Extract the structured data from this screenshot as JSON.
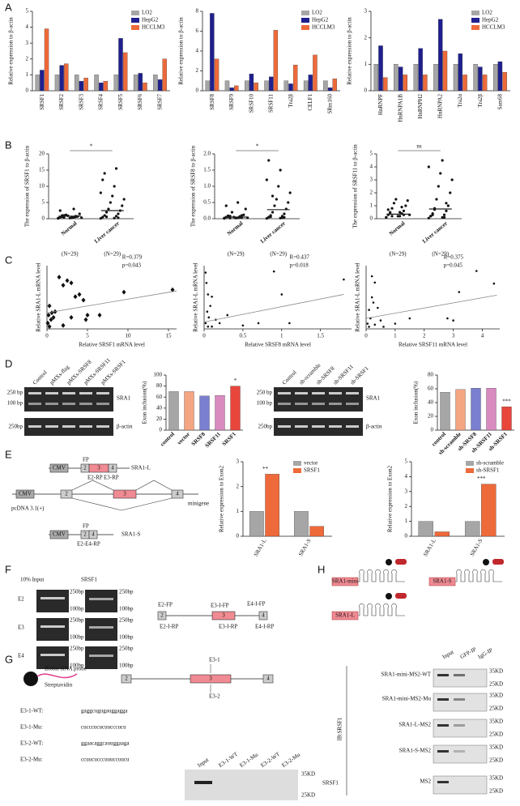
{
  "panel_labels": [
    "A",
    "B",
    "C",
    "D",
    "E",
    "F",
    "G",
    "H"
  ],
  "chart_data": [
    {
      "type": "bar",
      "ylabel": "Relative expression to β-actin",
      "categories": [
        "SRSF1",
        "SRSF2",
        "SRSF3",
        "SRSF4",
        "SRSF5",
        "SRSF6",
        "SRSF7"
      ],
      "series": [
        {
          "name": "LO2",
          "color": "#a6a6a6",
          "values": [
            1,
            1,
            1,
            1,
            1,
            1,
            1
          ]
        },
        {
          "name": "HepG2",
          "color": "#1f1f8f",
          "values": [
            1.3,
            1.6,
            0.6,
            0.5,
            3.3,
            1.1,
            0.7
          ]
        },
        {
          "name": "HCCLM3",
          "color": "#ee6a3a",
          "values": [
            3.9,
            1.7,
            0.8,
            0.6,
            2.4,
            0.5,
            2.0
          ]
        }
      ],
      "ylim": [
        0,
        5
      ],
      "yticks": [
        0,
        1,
        2,
        3,
        4,
        5
      ],
      "legend": "top-right"
    },
    {
      "type": "bar",
      "ylabel": "Relative expression to β-actin",
      "categories": [
        "SRSF8",
        "SRSF9",
        "SRSF10",
        "SRSF11",
        "Tra2β",
        "CELF1",
        "SRm160"
      ],
      "series": [
        {
          "name": "LO2",
          "color": "#a6a6a6",
          "values": [
            1,
            1,
            1,
            1,
            1,
            1,
            1
          ]
        },
        {
          "name": "HepG2",
          "color": "#1f1f8f",
          "values": [
            7.8,
            0.3,
            1.7,
            1.4,
            0.7,
            1.6,
            0.3
          ]
        },
        {
          "name": "HCCLM3",
          "color": "#ee6a3a",
          "values": [
            3.2,
            0.5,
            0.8,
            6.1,
            2.6,
            3.6,
            1.2
          ]
        }
      ],
      "ylim": [
        0,
        8
      ],
      "yticks": [
        0,
        2,
        4,
        6,
        8
      ],
      "legend": "top-right"
    },
    {
      "type": "bar",
      "ylabel": "Relative expression to β-actin",
      "categories": [
        "HnRNPF",
        "HnRNPA1B",
        "HnRNPH2",
        "HnRNPA2",
        "Tra2α",
        "Tra2β",
        "Sam68"
      ],
      "series": [
        {
          "name": "LO2",
          "color": "#a6a6a6",
          "values": [
            1,
            1,
            1,
            1,
            1,
            1,
            1
          ]
        },
        {
          "name": "HepG2",
          "color": "#1f1f8f",
          "values": [
            1.7,
            0.9,
            1.6,
            2.7,
            1.4,
            0.9,
            1.1
          ]
        },
        {
          "name": "HCCLM3",
          "color": "#ee6a3a",
          "values": [
            0.5,
            0.6,
            0.6,
            1.5,
            0.6,
            0.6,
            0.7
          ]
        }
      ],
      "ylim": [
        0,
        3
      ],
      "yticks": [
        0,
        1,
        2,
        3
      ],
      "legend": "top-right"
    },
    {
      "type": "dot",
      "ylabel": "The expression of SRSF1 to β-actin",
      "groups": [
        {
          "name": "Normal",
          "values": [
            0.2,
            0.3,
            0.5,
            0.4,
            0.6,
            0.8,
            1,
            0.7,
            1.2,
            1.5,
            0.9,
            0.3,
            0.2,
            0.1,
            0.5,
            2.5,
            3,
            1,
            0.6,
            0.4
          ],
          "mean": 0.8
        },
        {
          "name": "Liver cancer",
          "values": [
            0.1,
            0.2,
            0.5,
            0.8,
            1,
            1.5,
            2,
            2.5,
            3,
            4,
            5,
            6,
            7,
            8,
            10,
            12,
            15.5,
            14,
            0.3,
            0.6
          ],
          "mean": 2.5
        }
      ],
      "n_labels": [
        "(N=29)",
        "(N=29)"
      ],
      "significance": "*",
      "ylim": [
        0,
        20
      ],
      "yticks": [
        0,
        5,
        10,
        15,
        20
      ]
    },
    {
      "type": "dot",
      "ylabel": "The expression of SRSF8 to β-actin",
      "groups": [
        {
          "name": "Normal",
          "values": [
            0.02,
            0.03,
            0.05,
            0.04,
            0.06,
            0.1,
            0.08,
            0.12,
            0.2,
            0.3,
            0.05,
            0.03,
            0.02,
            0.01,
            0.5,
            0.4,
            0.07,
            0.09,
            0.04,
            0.02
          ],
          "mean": 0.05
        },
        {
          "name": "Liver cancer",
          "values": [
            0.01,
            0.02,
            0.05,
            0.08,
            0.1,
            0.15,
            0.2,
            0.3,
            0.4,
            0.5,
            0.6,
            0.8,
            1.0,
            1.2,
            1.5,
            1.8,
            0.03,
            0.06,
            0.04,
            0.7
          ],
          "mean": 0.28
        }
      ],
      "n_labels": [
        "(N=29)",
        "(N=29)"
      ],
      "significance": "*",
      "ylim": [
        0,
        2
      ],
      "yticks": [
        {
          "value": 0,
          "label": "0.0"
        },
        {
          "value": 0.5,
          "label": "0.5"
        },
        {
          "value": 1,
          "label": "1.0"
        },
        {
          "value": 1.5,
          "label": "1.5"
        },
        {
          "value": 2,
          "label": "2.0"
        }
      ]
    },
    {
      "type": "dot",
      "ylabel": "The expression of SRSF11 to β-actin",
      "groups": [
        {
          "name": "Normal",
          "values": [
            0.1,
            0.2,
            0.3,
            0.4,
            0.5,
            0.6,
            0.8,
            1,
            1.2,
            1.4,
            1.5,
            0.3,
            0.2,
            0.1,
            0.5,
            0.7,
            0.9,
            0.4,
            0.3,
            0.2
          ],
          "mean": 0.35
        },
        {
          "name": "Liver cancer",
          "values": [
            0.05,
            0.1,
            0.2,
            0.3,
            0.4,
            0.6,
            0.8,
            1,
            1.5,
            2,
            2.5,
            3,
            3.5,
            4,
            4.5,
            0.2,
            0.1,
            0.3,
            1.2,
            0.7
          ],
          "mean": 0.75
        }
      ],
      "n_labels": [
        "(N=29)",
        "(N=29)"
      ],
      "significance": "ns",
      "ylim": [
        0,
        5
      ],
      "yticks": [
        0,
        1,
        2,
        3,
        4,
        5
      ]
    },
    {
      "type": "scatter",
      "marker": "diamond",
      "ylabel": "Relative SRA1-L mRNA level",
      "xlabel": "Relative SRSF1 mRNA level",
      "x": [
        0.1,
        0.2,
        0.3,
        0.5,
        0.6,
        0.8,
        0.3,
        1,
        1.5,
        2,
        2.5,
        3,
        3.5,
        4,
        4.5,
        3,
        4.8,
        5,
        6.5,
        2,
        9.5,
        15.5
      ],
      "y": [
        0.05,
        0.12,
        0.02,
        0.08,
        0.14,
        0.1,
        0.2,
        0.15,
        0.45,
        0.38,
        0.42,
        0.4,
        0.28,
        0.3,
        0.25,
        0.1,
        0.08,
        0.12,
        0.12,
        0.03,
        0.32,
        0.34
      ],
      "trendline": {
        "x": [
          0,
          16
        ],
        "y": [
          0.14,
          0.33
        ]
      },
      "stats": [
        "R=0.379",
        "p=0.043"
      ],
      "xlim": [
        0,
        16
      ],
      "ylim": [
        0,
        0.55
      ],
      "xticks": [
        0,
        5,
        10,
        15
      ]
    },
    {
      "type": "scatter",
      "marker": "dot",
      "ylabel": "Relative SRA1-L mRNA level",
      "xlabel": "Relative SRSF8 mRNA level",
      "x": [
        0.02,
        0.03,
        0.05,
        0.04,
        0.06,
        0.1,
        0.05,
        0.08,
        0.1,
        0.15,
        0.2,
        0.3,
        0.5,
        0.7,
        0.9,
        1.0,
        1.1,
        1.8,
        0.02
      ],
      "y": [
        0.05,
        0.4,
        0.3,
        0.15,
        0.1,
        0.02,
        0.02,
        0.2,
        0.28,
        0.08,
        0.05,
        0.12,
        0.03,
        0.05,
        0.5,
        0.3,
        0.05,
        0.43,
        0.49
      ],
      "trendline": {
        "x": [
          0,
          1.8
        ],
        "y": [
          0.06,
          0.3
        ]
      },
      "stats": [
        "R=0.437",
        "p=0.018"
      ],
      "xlim": [
        0,
        1.9
      ],
      "ylim": [
        0,
        0.55
      ],
      "xticks": [
        0,
        0.5,
        1,
        1.5
      ]
    },
    {
      "type": "scatter",
      "marker": "dot",
      "ylabel": "Relative SRA1-L mRNA level",
      "xlabel": "Relative SRSF11 mRNA level",
      "x": [
        0.05,
        0.1,
        0.15,
        0.2,
        0.25,
        0.3,
        0.4,
        0.5,
        0.3,
        0.1,
        0.6,
        1,
        1.5,
        2.8,
        3,
        3.2,
        3.8,
        4.4,
        0.2
      ],
      "y": [
        0.05,
        0.02,
        0.1,
        0.3,
        0.25,
        0.04,
        0.2,
        0.08,
        0.44,
        0.18,
        0.02,
        0.05,
        0.1,
        0.1,
        0.08,
        0.35,
        0.55,
        0.43,
        0.5
      ],
      "trendline": {
        "x": [
          0,
          4.5
        ],
        "y": [
          0.1,
          0.32
        ]
      },
      "stats": [
        "R=0.375",
        "p=0.045"
      ],
      "xlim": [
        0,
        4.6
      ],
      "ylim": [
        0,
        0.6
      ],
      "xticks": [
        0,
        1,
        2,
        3,
        4
      ]
    },
    {
      "type": "bar",
      "ylabel": "Exon inclusion(%)",
      "categories": [
        "control",
        "vector",
        "SRSF8",
        "SRSF11",
        "SRSF1"
      ],
      "values": [
        70,
        70,
        62,
        63,
        80
      ],
      "colors": [
        "#a6a6a6",
        "#f4a582",
        "#7a7fcf",
        "#d98bbf",
        "#e8463b"
      ],
      "significance": [
        null,
        null,
        null,
        null,
        "*"
      ],
      "ylim": [
        0,
        100
      ],
      "yticks": [
        0,
        20,
        40,
        60,
        80,
        100
      ]
    },
    {
      "type": "bar",
      "ylabel": "Exon inclusion(%)",
      "categories": [
        "control",
        "sh-scramble",
        "sh-SRSF8",
        "sh-SRSF11",
        "sh-SRSF1"
      ],
      "values": [
        55,
        59,
        61,
        61,
        34
      ],
      "colors": [
        "#a6a6a6",
        "#f4a582",
        "#7a7fcf",
        "#d98bbf",
        "#e8463b"
      ],
      "significance": [
        null,
        null,
        null,
        null,
        "***"
      ],
      "ylim": [
        0,
        80
      ],
      "yticks": [
        0,
        20,
        40,
        60,
        80
      ]
    },
    {
      "type": "bar",
      "ylabel": "Relative expression to Exon2",
      "categories": [
        "SRA1-L",
        "SRA1-S"
      ],
      "series": [
        {
          "name": "vector",
          "color": "#a6a6a6",
          "values": [
            1,
            1
          ]
        },
        {
          "name": "SRSF1",
          "color": "#ee6a3a",
          "values": [
            2.5,
            0.4
          ]
        }
      ],
      "significance": [
        "**",
        null
      ],
      "ylim": [
        0,
        3
      ],
      "yticks": [
        0,
        1,
        2,
        3
      ],
      "legend": "top-right"
    },
    {
      "type": "bar",
      "ylabel": "Relative expression to Exon2",
      "categories": [
        "SRA1-L",
        "SRA1-S"
      ],
      "series": [
        {
          "name": "sh-scramble",
          "color": "#a6a6a6",
          "values": [
            1,
            1
          ]
        },
        {
          "name": "sh-SRSF1",
          "color": "#ee6a3a",
          "values": [
            0.3,
            3.5
          ]
        }
      ],
      "significance": [
        null,
        "***"
      ],
      "ylim": [
        0,
        5
      ],
      "yticks": [
        0,
        1,
        2,
        3,
        4,
        5
      ],
      "legend": "top-right"
    }
  ],
  "d": {
    "lanes1": [
      "Control",
      "pMXs-flag",
      "pMXs-SRSF8",
      "pMXs-SRSF11",
      "pMXs-SRSF1"
    ],
    "lanes2": [
      "Control",
      "sh-scramble",
      "sh-SRSF8",
      "sh-SRSF11",
      "sh-SRSF1"
    ],
    "markers": [
      "250 bp",
      "100 bp",
      "250bp"
    ],
    "bands": [
      "SRA1",
      "β-actin"
    ]
  },
  "e": {
    "cmv": "CMV",
    "fp": "FP",
    "exons": [
      "2",
      "3",
      "4"
    ],
    "long": "SRA1-L",
    "short": "SRA1-S",
    "rp_long": [
      "E2-RP",
      "E3-RP"
    ],
    "minigene": "minigene",
    "vector": "pcDNA 3.1(+)",
    "rp_short": "E2-E4-RP"
  },
  "f": {
    "columns": [
      "10% Input",
      "SRSF1"
    ],
    "rows": [
      "E2",
      "E3",
      "E4"
    ],
    "markers": [
      "250bp",
      "100bp"
    ],
    "primers": [
      "E2-FP",
      "E2-I-RP",
      "E3-I-FP",
      "E3-I-RP",
      "E4-I-FP",
      "E4-I-RP"
    ]
  },
  "g": {
    "probe": "Biotin-RNA probe",
    "bead": "Streptavidin",
    "sites": [
      "E3-1",
      "E3-2"
    ],
    "sequences": [
      [
        "E3-1-WT:",
        "gaggcugugauggagga"
      ],
      [
        "E3-1-Mu:",
        "cucccucucuucccucu"
      ],
      [
        "E3-2-WT:",
        "ggaacaggcauuggaaga"
      ],
      [
        "E3-2-Mu:",
        "ccuucucccuuuccuucu"
      ]
    ],
    "lanes": [
      "Input",
      "E3-1-WT",
      "E3-1-Mu",
      "E3-2-WT",
      "E3-2-Mu"
    ],
    "markers": [
      "35KD",
      "25KD"
    ],
    "protein": "SRSF1"
  },
  "h": {
    "constructs": [
      "SRA1-mini",
      "SRA1-S",
      "SRA1-L"
    ],
    "lanes": [
      "Input",
      "GFP-IP",
      "IgG-IP"
    ],
    "rows": [
      "SRA1-mini-MS2-WT",
      "SRA1-mini-MS2-Mu",
      "SRA1-L-MS2",
      "SRA1-S-MS2",
      "MS2"
    ],
    "markers": [
      "35KD",
      "25KD"
    ],
    "antibody": "IB:SRSF1"
  }
}
